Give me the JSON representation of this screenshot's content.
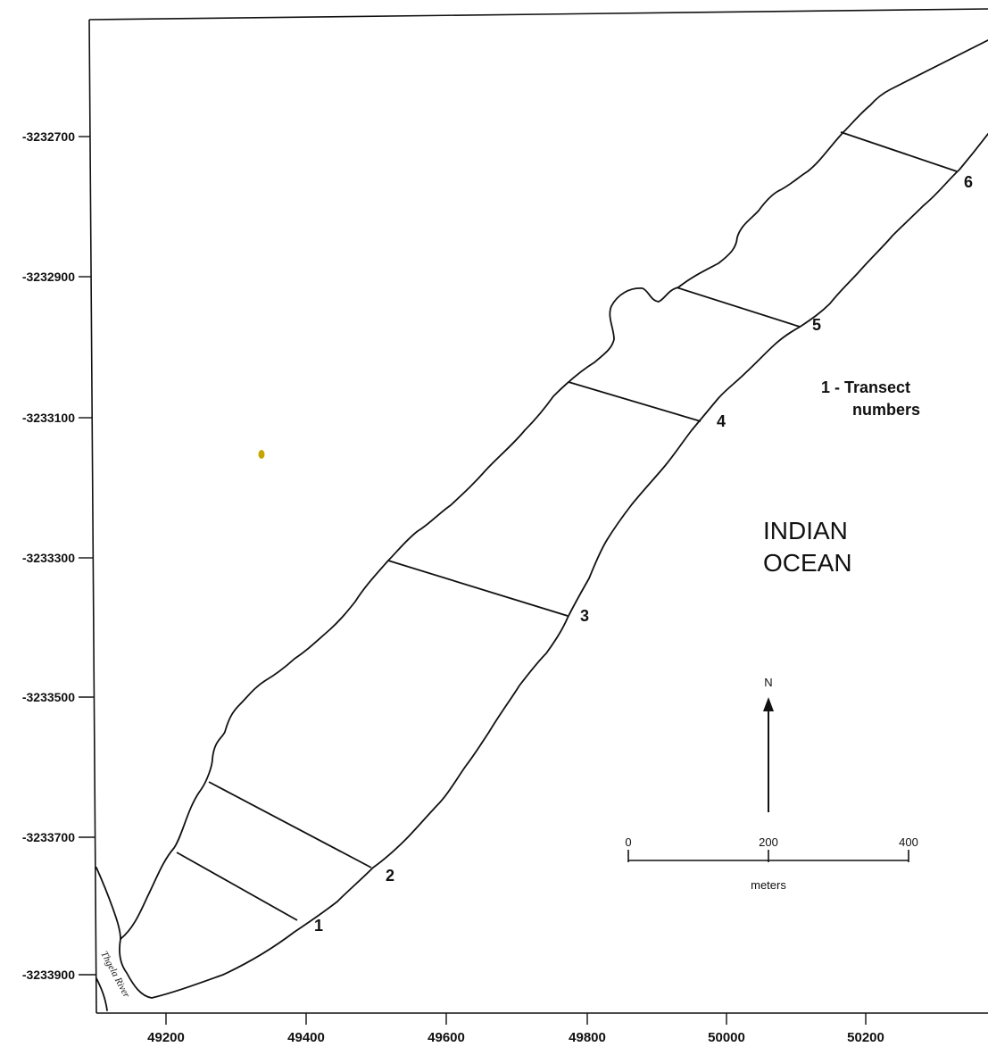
{
  "map": {
    "y_ticks": [
      "-3232700",
      "-3232900",
      "-3233100",
      "-3233300",
      "-3233500",
      "-3233700",
      "-3233900"
    ],
    "x_ticks": [
      "49200",
      "49400",
      "49600",
      "49800",
      "50000",
      "50200"
    ],
    "transects": [
      "1",
      "2",
      "3",
      "4",
      "5",
      "6"
    ],
    "legend": {
      "line1": "1 - Transect",
      "line2": "numbers"
    },
    "ocean_label": {
      "line1": "INDIAN",
      "line2": "OCEAN"
    },
    "north_label": "N",
    "scale_bar": {
      "labels": [
        "0",
        "200",
        "400"
      ],
      "unit": "meters"
    },
    "river_label": "Thgela River",
    "colors": {
      "line": "#111111",
      "background": "#ffffff",
      "marker": "#c8a400"
    }
  }
}
